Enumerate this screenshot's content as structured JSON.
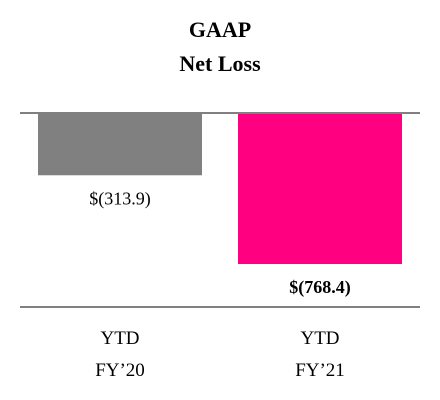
{
  "chart_data": {
    "type": "bar",
    "title_lines": [
      "GAAP",
      "Net Loss"
    ],
    "xlabel": "",
    "ylabel": "",
    "categories": [
      {
        "line1": "YTD",
        "line2": "FY’20"
      },
      {
        "line1": "YTD",
        "line2": "FY’21"
      }
    ],
    "values": [
      -313.9,
      -768.4
    ],
    "data_labels": [
      "$(313.9)",
      "$(768.4)"
    ],
    "label_bold": [
      false,
      true
    ],
    "colors": [
      "#808080",
      "#ff0080"
    ],
    "ylim": [
      -768.4,
      0
    ],
    "grid": false,
    "legend": "none"
  }
}
